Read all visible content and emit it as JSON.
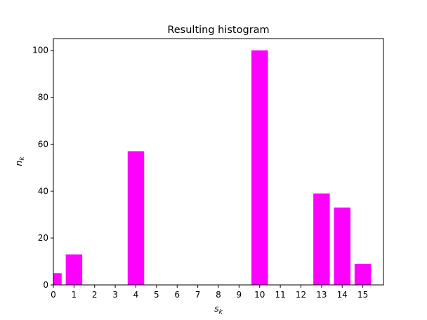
{
  "chart_data": {
    "type": "bar",
    "title": "Resulting histogram",
    "xlabel": {
      "base": "s",
      "sub": "k"
    },
    "ylabel": {
      "base": "n",
      "sub": "k"
    },
    "categories": [
      "0",
      "1",
      "2",
      "3",
      "4",
      "5",
      "6",
      "7",
      "8",
      "9",
      "10",
      "11",
      "12",
      "13",
      "14",
      "15"
    ],
    "values": [
      5,
      13,
      0,
      0,
      57,
      0,
      0,
      0,
      0,
      0,
      100,
      0,
      0,
      39,
      33,
      9
    ],
    "bar_color": "#ff00ff",
    "xlim": [
      0,
      16
    ],
    "ylim": [
      0,
      105
    ],
    "xticks": [
      "0",
      "1",
      "2",
      "3",
      "4",
      "5",
      "6",
      "7",
      "8",
      "9",
      "10",
      "11",
      "12",
      "13",
      "14",
      "15"
    ],
    "yticks": [
      "0",
      "20",
      "40",
      "60",
      "80",
      "100"
    ],
    "grid": false,
    "legend": "none"
  }
}
